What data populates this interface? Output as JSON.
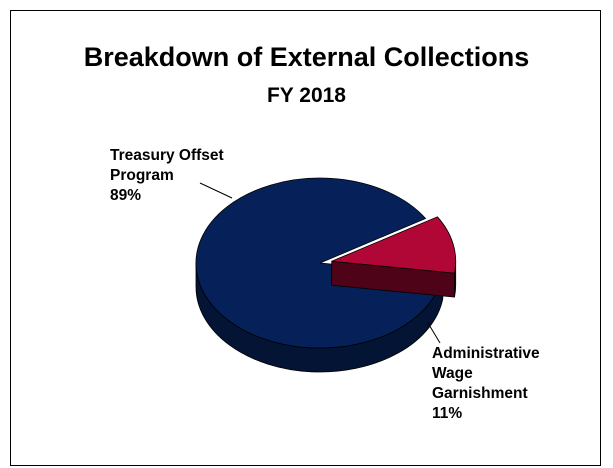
{
  "chart_data": {
    "type": "pie",
    "title": "Breakdown of External Collections",
    "subtitle": "FY 2018",
    "slices": [
      {
        "label_lines": [
          "Treasury Offset",
          "Program"
        ],
        "value_label": "89%",
        "value": 89,
        "color": "#062159"
      },
      {
        "label_lines": [
          "Administrative",
          "Wage",
          "Garnishment"
        ],
        "value_label": "11%",
        "value": 11,
        "color": "#b00736"
      }
    ]
  }
}
